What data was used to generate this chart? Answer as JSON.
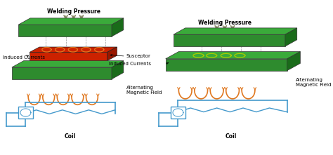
{
  "green_face": "#2e8b2e",
  "green_dark": "#1a6b1a",
  "green_light": "#3aaa3a",
  "red_face": "#cc2200",
  "red_dark": "#991800",
  "orange": "#e07820",
  "yellow_green": "#aacc00",
  "blue": "#4499cc",
  "gray_arrow": "#888866",
  "black": "#111111",
  "dash_color": "#999999",
  "white": "#ffffff",
  "lbl_weld_l": "Welding Pressure",
  "lbl_weld_r": "Welding Pressure",
  "lbl_induced_l": "Induced Currents",
  "lbl_induced_r": "Induced Currents",
  "lbl_susceptor": "Susceptor",
  "lbl_amf_l": "Alternating\nMagnetic Field",
  "lbl_amf_r": "Alternating\nMagnetic Field",
  "lbl_coil_l": "Coil",
  "lbl_coil_r": "Coil"
}
